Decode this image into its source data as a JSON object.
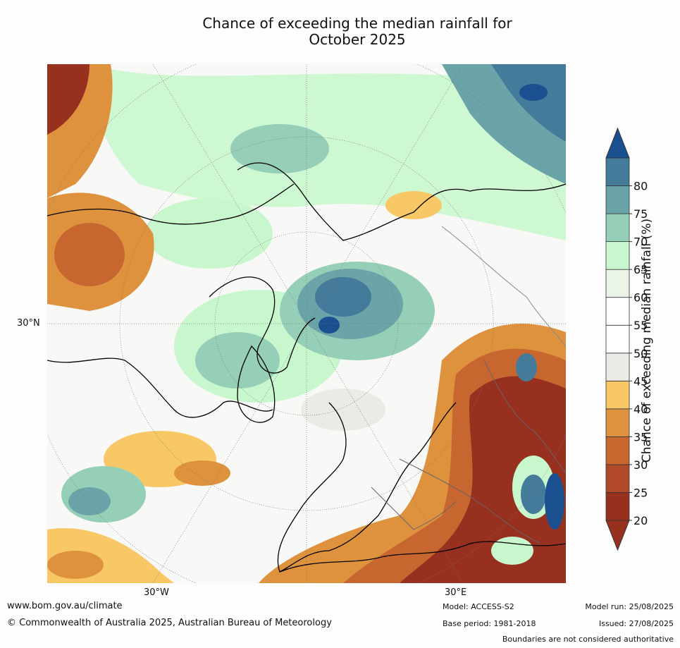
{
  "title_line1": "Chance of exceeding the median rainfall for",
  "title_line2": "October 2025",
  "lat_label": "30°N",
  "lon_labels": [
    "30°W",
    "30°E"
  ],
  "colorbar": {
    "label": "Chance of exceeding median rainfall (%)",
    "ticks": [
      "20",
      "25",
      "30",
      "35",
      "40",
      "45",
      "50",
      "55",
      "60",
      "65",
      "70",
      "75",
      "80"
    ],
    "colors": [
      "#983020",
      "#b04a28",
      "#c8662f",
      "#de923e",
      "#f8c867",
      "#eceae5",
      "#ffffff",
      "#ffffff",
      "#eaf5e8",
      "#c9f7cd",
      "#96cfb7",
      "#6aa4a8",
      "#447b9b"
    ],
    "low_extend_color": "#983020",
    "high_extend_color": "#1a5090"
  },
  "footer": {
    "website": "www.bom.gov.au/climate",
    "copyright": "© Commonwealth of Australia 2025, Australian Bureau of Meteorology",
    "model": "Model: ACCESS-S2",
    "base_period": "Base period: 1981-2018",
    "model_run": "Model run: 25/08/2025",
    "issued": "Issued: 27/08/2025",
    "disclaimer": "Boundaries are not considered authoritative"
  }
}
